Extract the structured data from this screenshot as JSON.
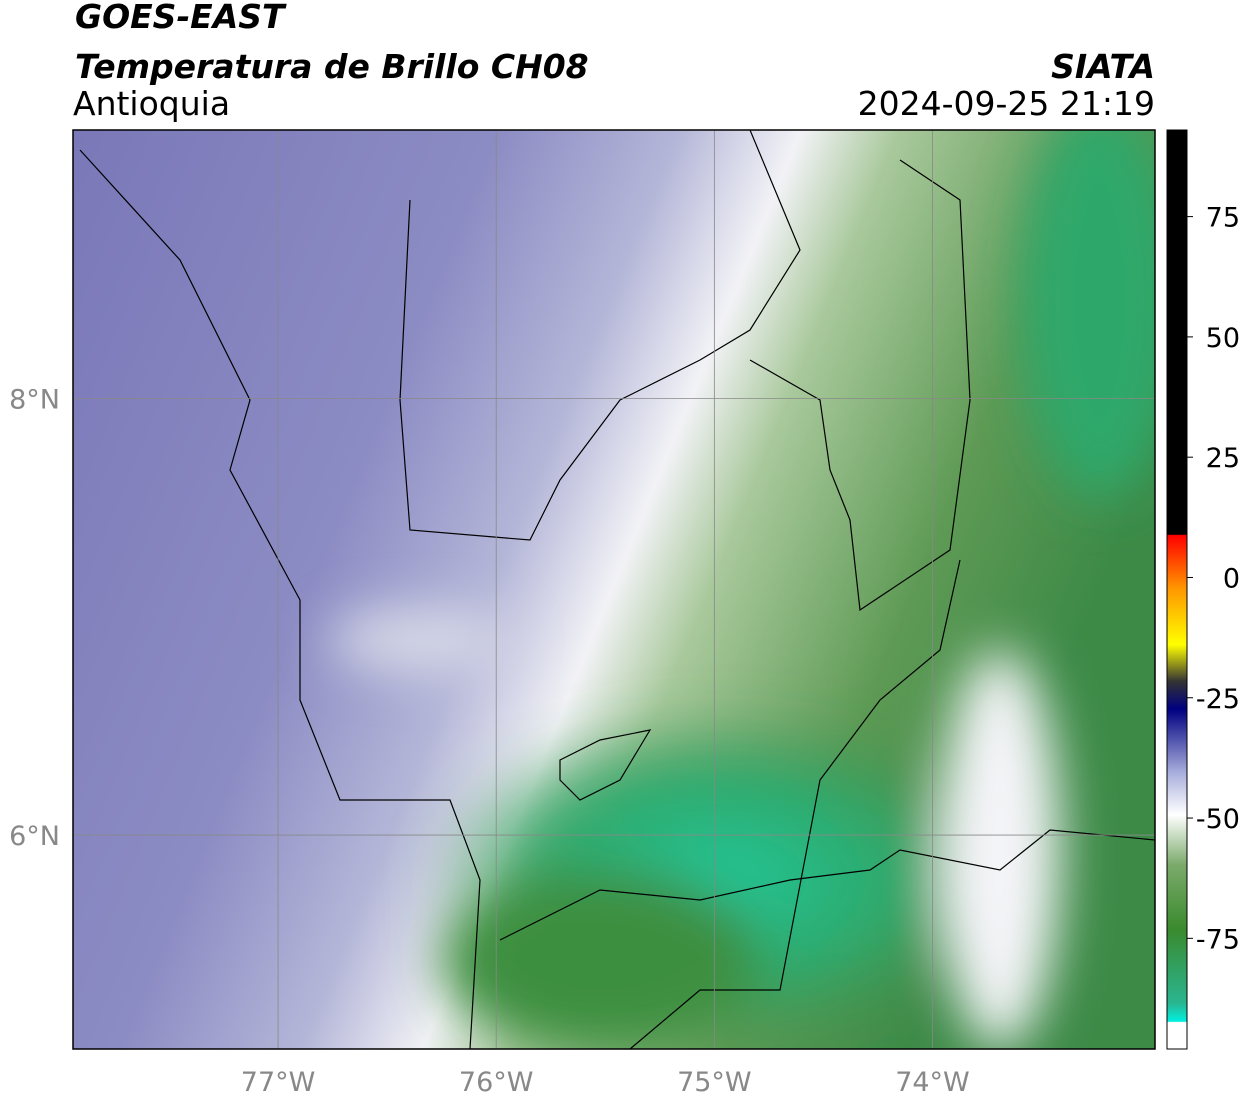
{
  "header": {
    "title": "GOES-EAST",
    "subtitle": "Temperatura de Brillo CH08",
    "region": "Antioquia",
    "source": "SIATA",
    "timestamp": "2024-09-25 21:19"
  },
  "map": {
    "lat_range": [
      5.02,
      9.23
    ],
    "lon_range": [
      -77.94,
      -72.98
    ],
    "lat_ticks": [
      {
        "value": 8,
        "label": "8°N"
      },
      {
        "value": 6,
        "label": "6°N"
      }
    ],
    "lon_ticks": [
      {
        "value": -77,
        "label": "77°W"
      },
      {
        "value": -76,
        "label": "76°W"
      },
      {
        "value": -75,
        "label": "75°W"
      },
      {
        "value": -74,
        "label": "74°W"
      }
    ]
  },
  "colorbar": {
    "range": [
      -98,
      93
    ],
    "ticks": [
      75,
      50,
      25,
      0,
      -25,
      -50,
      -75
    ]
  }
}
